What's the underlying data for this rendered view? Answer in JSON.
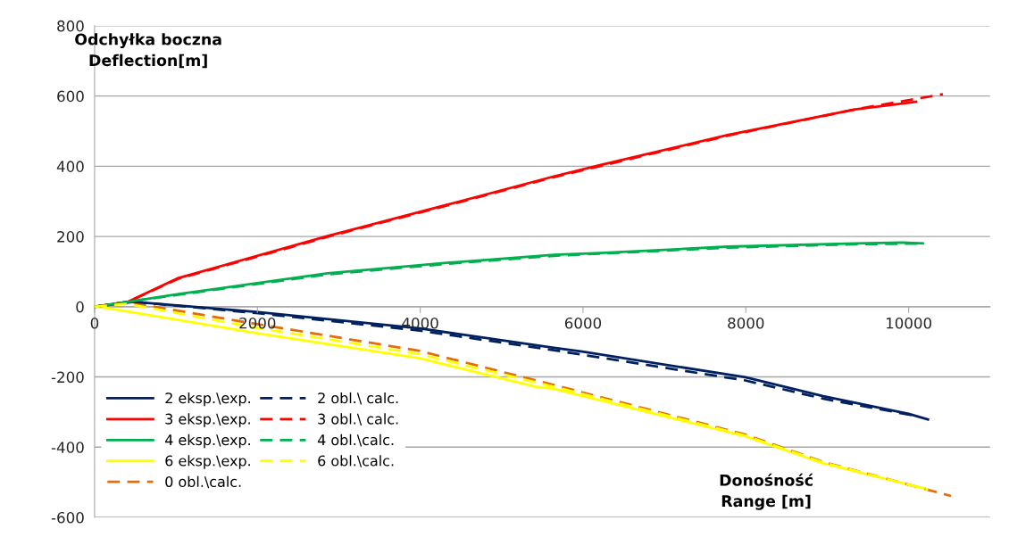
{
  "chart_data": {
    "type": "line",
    "xlabel": "Donośność\nRange [m]",
    "ylabel": "Odchyłka boczna\nDeflection[m]",
    "xlim": [
      0,
      11000
    ],
    "xticks": [
      0,
      2000,
      4000,
      6000,
      8000,
      10000
    ],
    "ylim": [
      -600,
      800
    ],
    "yticks": [
      -600,
      -400,
      -200,
      0,
      200,
      400,
      600,
      800
    ],
    "grid": "y",
    "legend": "bottom left",
    "marker": "none",
    "series": [
      {
        "name": "2 eksp.\\exp.",
        "color": "#002060",
        "line_style": "solid",
        "x": [
          0,
          480,
          1983,
          3995,
          5642,
          5991,
          7994,
          8951,
          9998,
          10252
        ],
        "values": [
          0,
          14,
          -15,
          -62,
          -117,
          -128,
          -201,
          -255,
          -305,
          -322
        ]
      },
      {
        "name": "3 eksp.\\exp.",
        "color": "#ff0000",
        "line_style": "solid",
        "x": [
          0,
          410,
          1032,
          2861,
          4325,
          5642,
          6207,
          7775,
          9343,
          10107
        ],
        "values": [
          0,
          14,
          82,
          201,
          290,
          371,
          403,
          489,
          562,
          584
        ]
      },
      {
        "name": "4 eksp.\\exp.",
        "color": "#00b050",
        "line_style": "solid",
        "x": [
          0,
          410,
          1032,
          2861,
          4325,
          5642,
          6207,
          7775,
          9343,
          9930,
          10190
        ],
        "values": [
          0,
          14,
          36,
          95,
          125,
          148,
          153,
          171,
          180,
          183,
          180
        ]
      },
      {
        "name": "6 eksp.\\exp.",
        "color": "#ffff00",
        "line_style": "solid",
        "x": [
          0,
          154,
          1983,
          3995,
          5423,
          5642,
          7994,
          8951,
          10127,
          10240
        ],
        "values": [
          0,
          -4,
          -75,
          -147,
          -228,
          -234,
          -369,
          -446,
          -514,
          -521
        ]
      },
      {
        "name": "0 obl.\\calc.",
        "color": "#e46c0a",
        "line_style": "dashed",
        "x": [
          0,
          400,
          1983,
          3995,
          5642,
          7994,
          8951,
          10520
        ],
        "values": [
          0,
          13,
          -49,
          -126,
          -223,
          -364,
          -442,
          -539
        ]
      },
      {
        "name": "2 obl.\\ calc.",
        "color": "#002060",
        "line_style": "dashed",
        "x": [
          0,
          480,
          1983,
          3995,
          5642,
          7994,
          8951,
          10066
        ],
        "values": [
          0,
          14,
          -18,
          -68,
          -124,
          -210,
          -262,
          -310
        ]
      },
      {
        "name": "3 obl.\\ calc.",
        "color": "#ff0000",
        "line_style": "dashed",
        "x": [
          0,
          410,
          1032,
          2861,
          4325,
          5642,
          7775,
          9343,
          10420
        ],
        "values": [
          0,
          14,
          80,
          199,
          288,
          369,
          487,
          562,
          605
        ]
      },
      {
        "name": "4 obl.\\calc.",
        "color": "#00b050",
        "line_style": "dashed",
        "x": [
          0,
          410,
          1032,
          2861,
          4325,
          5642,
          7775,
          9343,
          10190
        ],
        "values": [
          0,
          14,
          34,
          92,
          122,
          145,
          168,
          178,
          180
        ]
      },
      {
        "name": "6 obl.\\calc.",
        "color": "#ffff00",
        "line_style": "dashed",
        "x": [
          0,
          400,
          1983,
          3995,
          5642,
          7994,
          8951,
          10240
        ],
        "values": [
          0,
          8,
          -60,
          -135,
          -228,
          -367,
          -444,
          -521
        ]
      }
    ]
  }
}
